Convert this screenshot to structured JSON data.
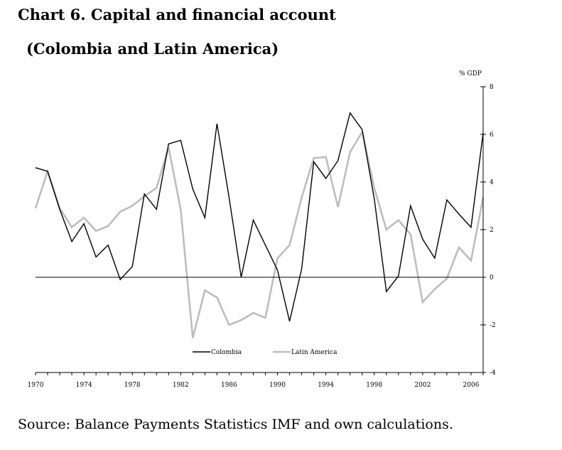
{
  "header": {
    "title": "Chart 6.  Capital and financial account",
    "subtitle": "(Colombia and Latin America)"
  },
  "footer": {
    "source": "Source: Balance Payments Statistics IMF and own calculations."
  },
  "colors": {
    "colombia": "#000000",
    "latin_america": "#bdbdbd",
    "axis": "#000000"
  },
  "chart_data": {
    "type": "line",
    "title": "Capital and financial account (Colombia and Latin America)",
    "ylabel": "% GDP",
    "xlabel": "",
    "xlim": [
      1970,
      2007
    ],
    "ylim": [
      -4,
      8
    ],
    "yticks": [
      8,
      6,
      4,
      2,
      0,
      -2,
      -4
    ],
    "xtick_labels": [
      "1970",
      "1974",
      "1978",
      "1982",
      "1986",
      "1990",
      "1994",
      "1998",
      "2002",
      "2006"
    ],
    "ytick_labels": [
      "8",
      "6",
      "4",
      "2",
      "0",
      "-2",
      "-4"
    ],
    "legend_position": "bottom-center",
    "x": [
      1970,
      1971,
      1972,
      1973,
      1974,
      1975,
      1976,
      1977,
      1978,
      1979,
      1980,
      1981,
      1982,
      1983,
      1984,
      1985,
      1986,
      1987,
      1988,
      1989,
      1990,
      1991,
      1992,
      1993,
      1994,
      1995,
      1996,
      1997,
      1998,
      1999,
      2000,
      2001,
      2002,
      2003,
      2004,
      2005,
      2006,
      2007
    ],
    "series": [
      {
        "name": "Colombia",
        "color": "#000000",
        "values": [
          4.6,
          4.45,
          2.85,
          1.5,
          2.25,
          0.85,
          1.35,
          -0.1,
          0.45,
          3.5,
          2.85,
          5.6,
          5.75,
          3.7,
          2.5,
          6.45,
          3.35,
          0.0,
          2.4,
          1.35,
          0.3,
          -1.85,
          0.35,
          4.85,
          4.15,
          4.9,
          6.9,
          6.2,
          3.3,
          -0.6,
          0.05,
          3.0,
          1.6,
          0.8,
          3.25,
          2.65,
          2.1,
          6.05
        ]
      },
      {
        "name": "Latin America",
        "color": "#bdbdbd",
        "values": [
          2.9,
          4.45,
          2.9,
          2.1,
          2.5,
          1.95,
          2.15,
          2.75,
          3.0,
          3.4,
          3.75,
          5.45,
          2.85,
          -2.55,
          -0.55,
          -0.85,
          -2.0,
          -1.8,
          -1.5,
          -1.7,
          0.8,
          1.35,
          3.35,
          5.0,
          5.05,
          2.95,
          5.25,
          6.1,
          3.75,
          2.0,
          2.4,
          1.8,
          -1.05,
          -0.5,
          -0.05,
          1.25,
          0.7,
          3.35
        ]
      }
    ]
  }
}
